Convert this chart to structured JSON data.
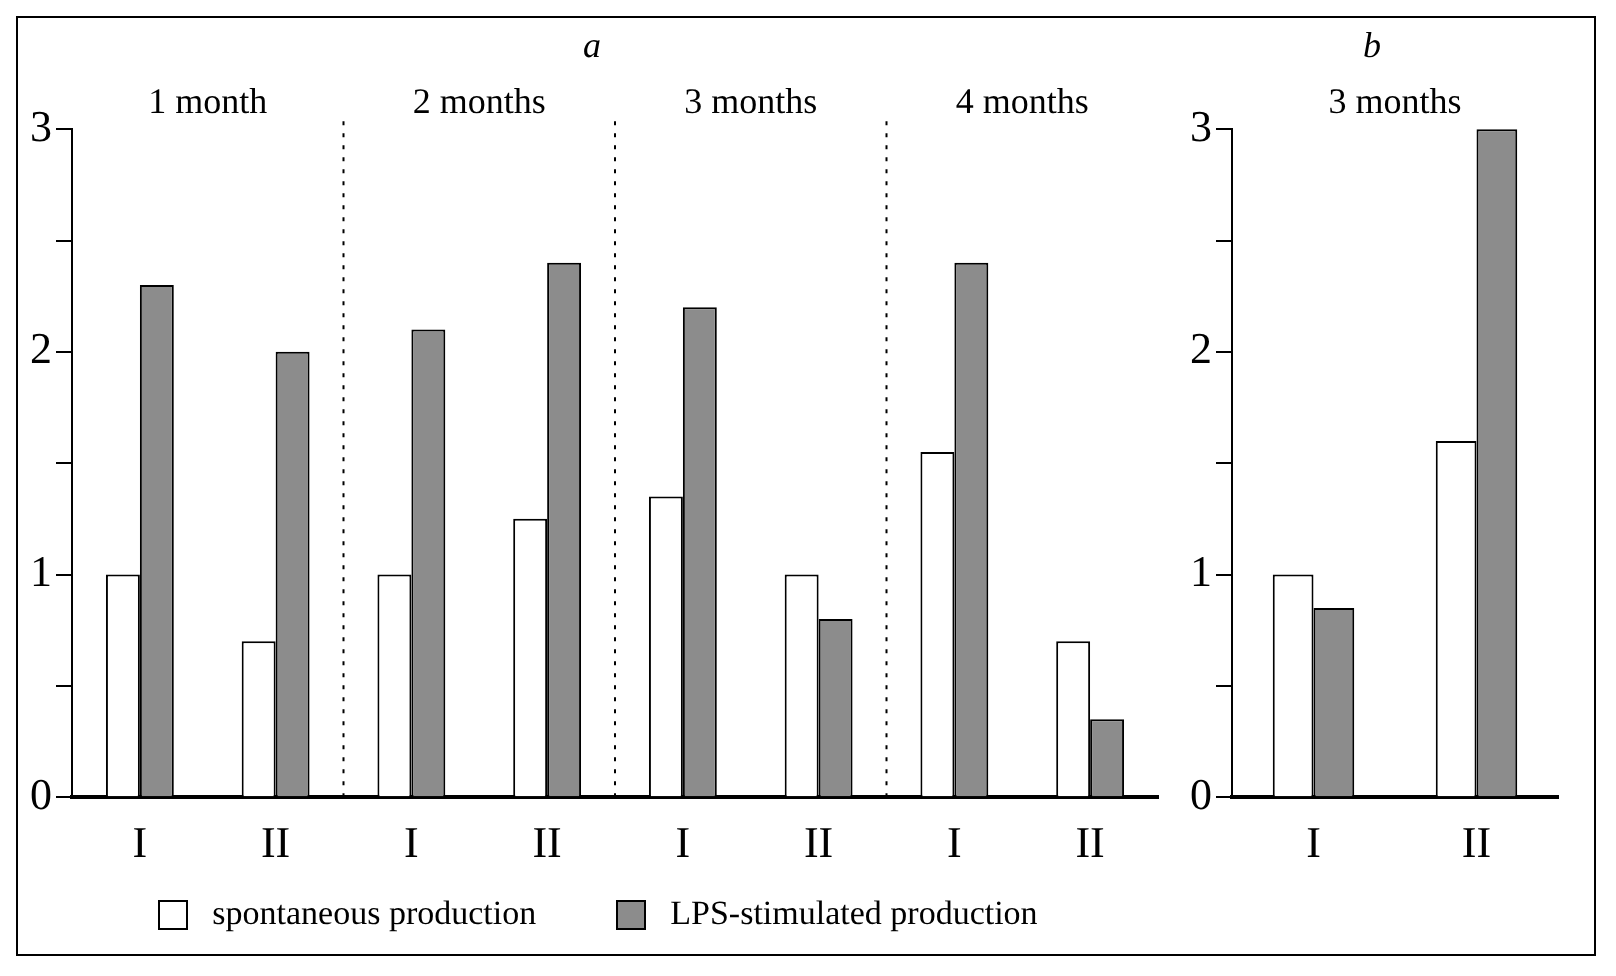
{
  "chart_data": [
    {
      "type": "bar",
      "title": "a",
      "categories": [
        "I",
        "II",
        "I",
        "II",
        "I",
        "II",
        "I",
        "II"
      ],
      "annotations": [
        "1 month",
        "2 months",
        "3 months",
        "4 months"
      ],
      "series": [
        {
          "name": "spontaneous production",
          "color": "#ffffff",
          "values": [
            1.0,
            0.7,
            1.0,
            1.25,
            1.35,
            1.0,
            1.55,
            0.7
          ]
        },
        {
          "name": "LPS-stimulated production",
          "color": "#8c8c8c",
          "values": [
            2.3,
            2.0,
            2.1,
            2.4,
            2.2,
            0.8,
            2.4,
            0.35
          ]
        }
      ],
      "ylim": [
        0,
        3
      ],
      "yticks": [
        0,
        {
          "value": 0.5,
          "label": null
        },
        1,
        {
          "value": 1.5,
          "label": null
        },
        2,
        {
          "value": 2.5,
          "label": null
        },
        3
      ],
      "grid": false,
      "legend": "bottom"
    },
    {
      "type": "bar",
      "title": "b",
      "categories": [
        "I",
        "II"
      ],
      "annotations": [
        "3 months"
      ],
      "series": [
        {
          "color": "#ffffff",
          "values": [
            1.0,
            1.6
          ]
        },
        {
          "color": "#8c8c8c",
          "values": [
            0.85,
            3.0
          ]
        }
      ],
      "ylim": [
        0,
        3
      ],
      "yticks": [
        0,
        {
          "value": 0.5,
          "label": null
        },
        1,
        {
          "value": 1.5,
          "label": null
        },
        2,
        {
          "value": 2.5,
          "label": null
        },
        3
      ],
      "grid": false
    }
  ]
}
